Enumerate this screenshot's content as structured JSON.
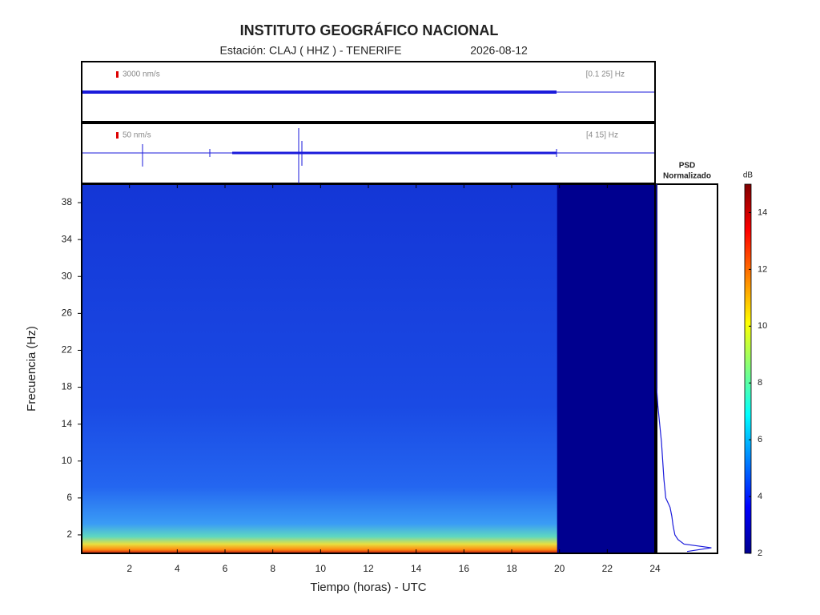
{
  "chart_data": {
    "type": "spectrogram",
    "title": "INSTITUTO GEOGRÁFICO NACIONAL",
    "station": "Estación:  CLAJ ( HHZ ) - TENERIFE",
    "date": "2026-08-12",
    "traces": [
      {
        "scale": "3000 nm/s",
        "band": "[0.1 25] Hz"
      },
      {
        "scale": "50 nm/s",
        "band": "[4 15] Hz"
      }
    ],
    "x_label": "Tiempo (horas) - UTC",
    "y_label": "Frecuencia  (Hz)",
    "xlim": [
      0,
      24
    ],
    "xticks": [
      2,
      4,
      6,
      8,
      10,
      12,
      14,
      16,
      18,
      20,
      22,
      24
    ],
    "ylim": [
      0,
      40
    ],
    "yticks": [
      2,
      6,
      10,
      14,
      18,
      22,
      26,
      30,
      34,
      38
    ],
    "data_end": 19.9,
    "psd": {
      "title": [
        "PSD",
        "Normalizado"
      ],
      "freq": [
        0.2,
        0.6,
        1,
        1.5,
        2,
        3,
        4,
        5,
        6,
        8,
        10,
        12,
        14,
        16,
        18,
        40
      ],
      "power": [
        0.5,
        0.9,
        0.45,
        0.35,
        0.3,
        0.27,
        0.25,
        0.22,
        0.15,
        0.12,
        0.1,
        0.08,
        0.05,
        0.02,
        0,
        0
      ]
    },
    "colorbar": {
      "label": "dB",
      "clim": [
        2,
        15
      ],
      "ticks": [
        2,
        4,
        6,
        8,
        10,
        12,
        14
      ]
    }
  }
}
